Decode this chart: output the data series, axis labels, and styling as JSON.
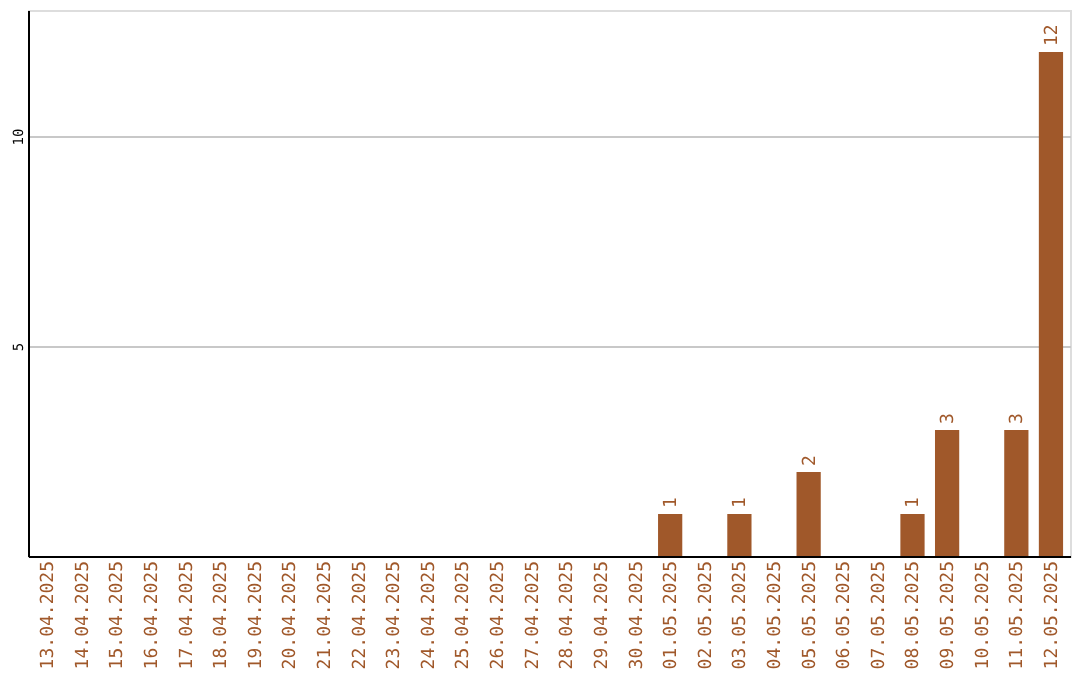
{
  "chart_data": {
    "type": "bar",
    "categories": [
      "13.04.2025",
      "14.04.2025",
      "15.04.2025",
      "16.04.2025",
      "17.04.2025",
      "18.04.2025",
      "19.04.2025",
      "20.04.2025",
      "21.04.2025",
      "22.04.2025",
      "23.04.2025",
      "24.04.2025",
      "25.04.2025",
      "26.04.2025",
      "27.04.2025",
      "28.04.2025",
      "29.04.2025",
      "30.04.2025",
      "01.05.2025",
      "02.05.2025",
      "03.05.2025",
      "04.05.2025",
      "05.05.2025",
      "06.05.2025",
      "07.05.2025",
      "08.05.2025",
      "09.05.2025",
      "10.05.2025",
      "11.05.2025",
      "12.05.2025"
    ],
    "values": [
      0,
      0,
      0,
      0,
      0,
      0,
      0,
      0,
      0,
      0,
      0,
      0,
      0,
      0,
      0,
      0,
      0,
      0,
      1,
      0,
      1,
      0,
      2,
      0,
      0,
      1,
      3,
      0,
      3,
      12
    ],
    "value_labels": [
      null,
      null,
      null,
      null,
      null,
      null,
      null,
      null,
      null,
      null,
      null,
      null,
      null,
      null,
      null,
      null,
      null,
      null,
      "1",
      null,
      "1",
      null,
      "2",
      null,
      null,
      "1",
      "3",
      null,
      "3",
      "12"
    ],
    "color": "#a0582a",
    "ylim": [
      0,
      13
    ],
    "yticks": [
      5,
      10
    ],
    "grid": "y"
  }
}
